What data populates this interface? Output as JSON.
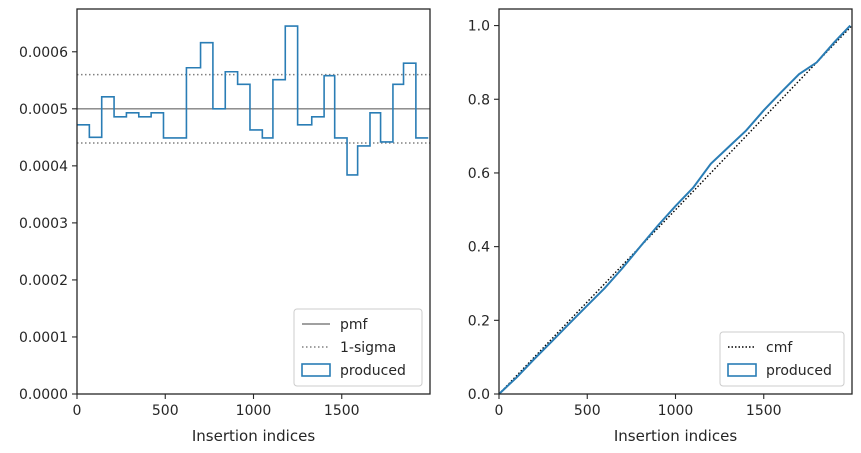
{
  "chart_data": [
    {
      "type": "step",
      "xlabel": "Insertion indices",
      "ylabel": "",
      "xlim": [
        0,
        2000
      ],
      "ylim": [
        0,
        0.000675
      ],
      "xticks": [
        "0",
        "500",
        "1000",
        "1500"
      ],
      "yticks": [
        "0.0000",
        "0.0001",
        "0.0002",
        "0.0003",
        "0.0004",
        "0.0005",
        "0.0006"
      ],
      "ytick_values": [
        0,
        0.0001,
        0.0002,
        0.0003,
        0.0004,
        0.0005,
        0.0006
      ],
      "xtick_values": [
        0,
        500,
        1000,
        1500
      ],
      "grid": false,
      "legend_position": "lower-right",
      "reference_lines": [
        {
          "name": "pmf",
          "y": 0.0005,
          "style": "solid",
          "color": "#808080"
        },
        {
          "name": "1-sigma",
          "y": 0.00056,
          "style": "dotted",
          "color": "#808080"
        },
        {
          "name": "1-sigma",
          "y": 0.00044,
          "style": "dotted",
          "color": "#808080"
        }
      ],
      "series": [
        {
          "name": "produced",
          "color": "#2a7db5",
          "bin_edges": [
            0,
            70,
            140,
            210,
            280,
            350,
            420,
            490,
            620,
            700,
            770,
            840,
            910,
            980,
            1050,
            1110,
            1180,
            1250,
            1330,
            1400,
            1460,
            1530,
            1590,
            1660,
            1720,
            1790,
            1850,
            1920,
            1990
          ],
          "values": [
            0.000472,
            0.00045,
            0.000521,
            0.000486,
            0.000493,
            0.000486,
            0.000493,
            0.000449,
            0.000572,
            0.000616,
            0.0005,
            0.000565,
            0.000543,
            0.000463,
            0.000449,
            0.000551,
            0.000645,
            0.000472,
            0.000486,
            0.000558,
            0.000449,
            0.000384,
            0.000435,
            0.000493,
            0.000442,
            0.000543,
            0.00058,
            0.000449
          ]
        }
      ],
      "legend": [
        "pmf",
        "1-sigma",
        "produced"
      ]
    },
    {
      "type": "line",
      "xlabel": "Insertion indices",
      "ylabel": "",
      "xlim": [
        0,
        2000
      ],
      "ylim": [
        0,
        1.045
      ],
      "xticks": [
        "0",
        "500",
        "1000",
        "1500"
      ],
      "yticks": [
        "0.0",
        "0.2",
        "0.4",
        "0.6",
        "0.8",
        "1.0"
      ],
      "ytick_values": [
        0,
        0.2,
        0.4,
        0.6,
        0.8,
        1.0
      ],
      "xtick_values": [
        0,
        500,
        1000,
        1500
      ],
      "grid": false,
      "legend_position": "lower-right",
      "series": [
        {
          "name": "cmf",
          "style": "dotted",
          "color": "#000000",
          "x": [
            0,
            2000
          ],
          "y": [
            0,
            1.0
          ]
        },
        {
          "name": "produced",
          "style": "step",
          "color": "#2a7db5",
          "x": [
            0,
            100,
            200,
            300,
            400,
            500,
            600,
            700,
            800,
            900,
            1000,
            1100,
            1200,
            1300,
            1400,
            1500,
            1600,
            1700,
            1800,
            1900,
            1990
          ],
          "y": [
            0,
            0.045,
            0.095,
            0.143,
            0.192,
            0.24,
            0.288,
            0.342,
            0.4,
            0.457,
            0.51,
            0.56,
            0.625,
            0.67,
            0.715,
            0.77,
            0.82,
            0.868,
            0.9,
            0.955,
            1.0
          ]
        }
      ],
      "legend": [
        "cmf",
        "produced"
      ]
    }
  ]
}
